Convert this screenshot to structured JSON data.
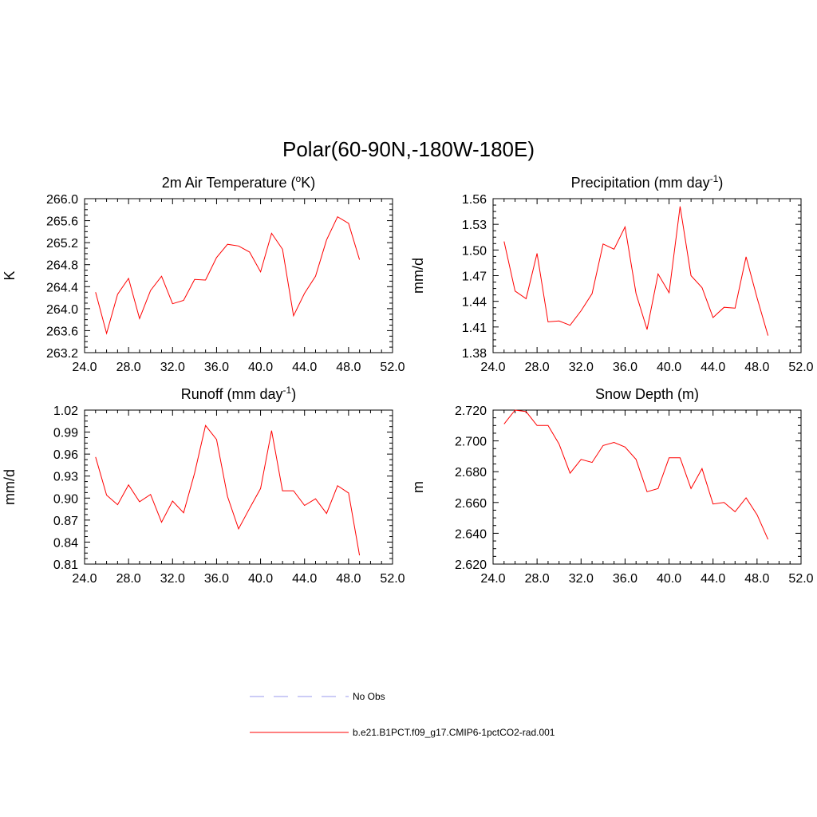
{
  "figure": {
    "title": "Polar(60-90N,-180W-180E)"
  },
  "legend": {
    "items": [
      {
        "label": "No Obs",
        "color": "#9999ee",
        "style": "dashed"
      },
      {
        "label": "b.e21.B1PCT.f09_g17.CMIP6-1pctCO2-rad.001",
        "color": "#ff0000",
        "style": "solid"
      }
    ]
  },
  "chart_data": [
    {
      "type": "line",
      "title": "2m Air Temperature (",
      "title_superscript": "o",
      "title_suffix": "K)",
      "ylabel": "K",
      "xlim": [
        24,
        52
      ],
      "ylim": [
        263.2,
        266.0
      ],
      "xticks": [
        "24.0",
        "28.0",
        "32.0",
        "36.0",
        "40.0",
        "44.0",
        "48.0",
        "52.0"
      ],
      "yticks": [
        "263.2",
        "263.6",
        "264.0",
        "264.4",
        "264.8",
        "265.2",
        "265.6",
        "266.0"
      ],
      "series": [
        {
          "color": "#ff0000",
          "x": [
            25,
            26,
            27,
            28,
            29,
            30,
            31,
            32,
            33,
            34,
            35,
            36,
            37,
            38,
            39,
            40,
            41,
            42,
            43,
            44,
            45,
            46,
            47,
            48,
            49
          ],
          "values": [
            264.3,
            263.55,
            264.26,
            264.55,
            263.82,
            264.33,
            264.59,
            264.09,
            264.15,
            264.53,
            264.52,
            264.93,
            265.17,
            265.14,
            265.03,
            264.67,
            265.37,
            265.08,
            263.87,
            264.28,
            264.59,
            265.25,
            265.67,
            265.55,
            264.89
          ]
        }
      ]
    },
    {
      "type": "line",
      "title": "Precipitation (mm day",
      "title_superscript": "-1",
      "title_suffix": ")",
      "ylabel": "mm/d",
      "xlim": [
        24,
        52
      ],
      "ylim": [
        1.38,
        1.56
      ],
      "xticks": [
        "24.0",
        "28.0",
        "32.0",
        "36.0",
        "40.0",
        "44.0",
        "48.0",
        "52.0"
      ],
      "yticks": [
        "1.38",
        "1.41",
        "1.44",
        "1.47",
        "1.50",
        "1.53",
        "1.56"
      ],
      "series": [
        {
          "color": "#ff0000",
          "x": [
            25,
            26,
            27,
            28,
            29,
            30,
            31,
            32,
            33,
            34,
            35,
            36,
            37,
            38,
            39,
            40,
            41,
            42,
            43,
            44,
            45,
            46,
            47,
            48,
            49
          ],
          "values": [
            1.51,
            1.452,
            1.443,
            1.496,
            1.416,
            1.417,
            1.412,
            1.429,
            1.449,
            1.507,
            1.501,
            1.527,
            1.449,
            1.407,
            1.472,
            1.45,
            1.551,
            1.47,
            1.456,
            1.421,
            1.433,
            1.432,
            1.492,
            1.444,
            1.4
          ]
        }
      ]
    },
    {
      "type": "line",
      "title": "Runoff (mm day",
      "title_superscript": "-1",
      "title_suffix": ")",
      "ylabel": "mm/d",
      "xlim": [
        24,
        52
      ],
      "ylim": [
        0.81,
        1.02
      ],
      "xticks": [
        "24.0",
        "28.0",
        "32.0",
        "36.0",
        "40.0",
        "44.0",
        "48.0",
        "52.0"
      ],
      "yticks": [
        "0.81",
        "0.84",
        "0.87",
        "0.90",
        "0.93",
        "0.96",
        "0.99",
        "1.02"
      ],
      "series": [
        {
          "color": "#ff0000",
          "x": [
            25,
            26,
            27,
            28,
            29,
            30,
            31,
            32,
            33,
            34,
            35,
            36,
            37,
            38,
            39,
            40,
            41,
            42,
            43,
            44,
            45,
            46,
            47,
            48,
            49
          ],
          "values": [
            0.956,
            0.904,
            0.891,
            0.918,
            0.895,
            0.905,
            0.867,
            0.896,
            0.88,
            0.934,
            0.999,
            0.98,
            0.902,
            0.858,
            0.886,
            0.913,
            0.992,
            0.91,
            0.91,
            0.89,
            0.899,
            0.879,
            0.917,
            0.907,
            0.822
          ]
        }
      ]
    },
    {
      "type": "line",
      "title": "Snow Depth (m)",
      "title_superscript": "",
      "title_suffix": "",
      "ylabel": "m",
      "xlim": [
        24,
        52
      ],
      "ylim": [
        2.62,
        2.72
      ],
      "xticks": [
        "24.0",
        "28.0",
        "32.0",
        "36.0",
        "40.0",
        "44.0",
        "48.0",
        "52.0"
      ],
      "yticks": [
        "2.620",
        "2.640",
        "2.660",
        "2.680",
        "2.700",
        "2.720"
      ],
      "series": [
        {
          "color": "#ff0000",
          "x": [
            25,
            26,
            27,
            28,
            29,
            30,
            31,
            32,
            33,
            34,
            35,
            36,
            37,
            38,
            39,
            40,
            41,
            42,
            43,
            44,
            45,
            46,
            47,
            48,
            49
          ],
          "values": [
            2.711,
            2.72,
            2.719,
            2.71,
            2.71,
            2.698,
            2.679,
            2.688,
            2.686,
            2.697,
            2.699,
            2.696,
            2.688,
            2.667,
            2.669,
            2.689,
            2.689,
            2.669,
            2.682,
            2.659,
            2.66,
            2.654,
            2.663,
            2.652,
            2.636
          ]
        }
      ]
    }
  ]
}
